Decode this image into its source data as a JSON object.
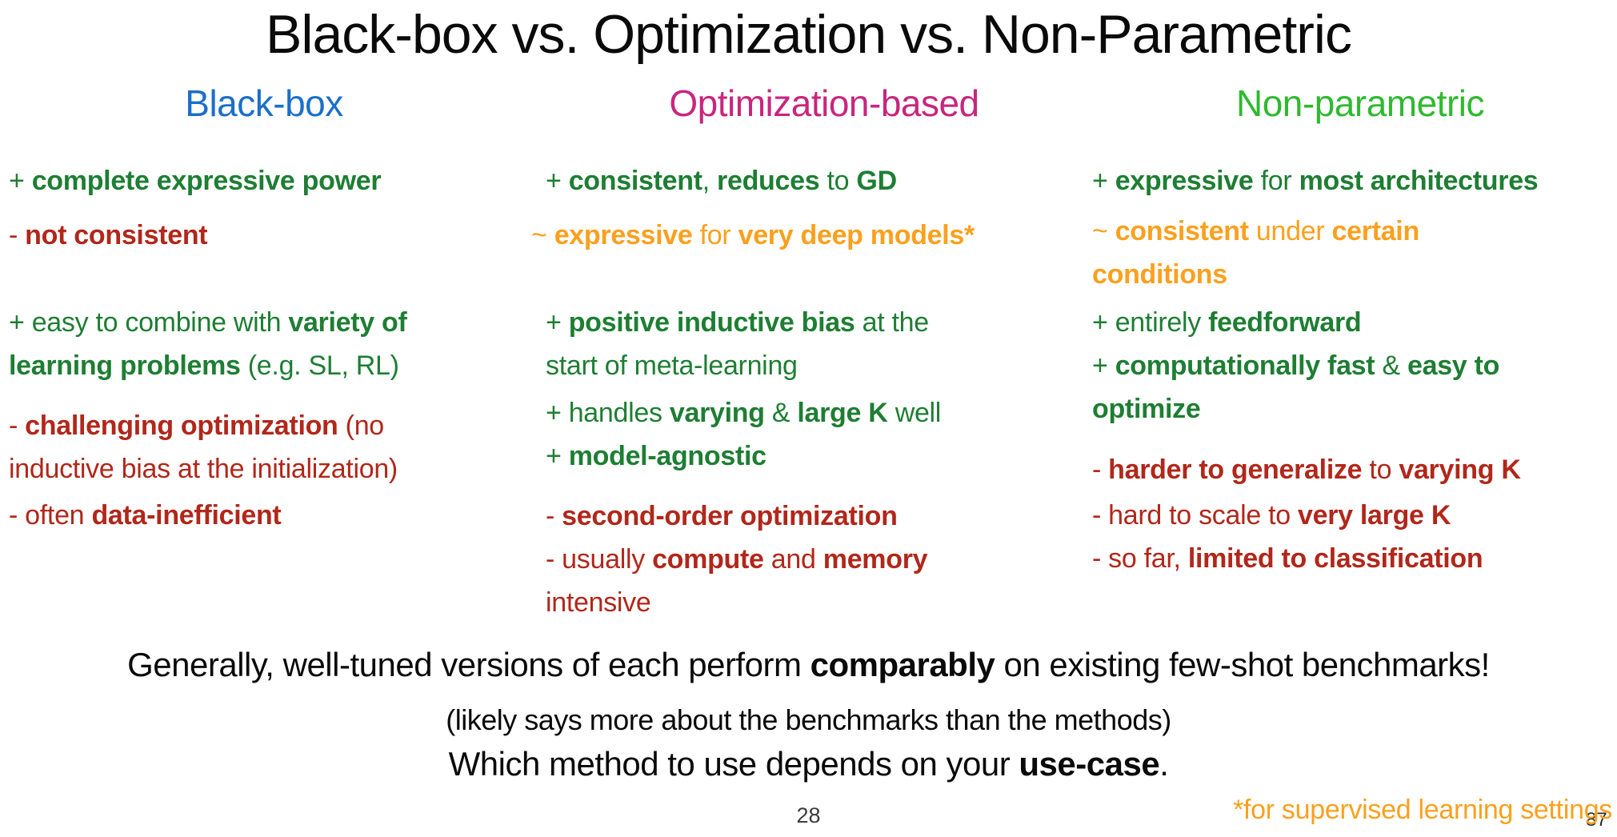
{
  "title": "Black-box vs. Optimization vs. Non-Parametric",
  "colors": {
    "blue": "#1b6fc8",
    "magenta": "#c7267e",
    "bright-green": "#2fb92f",
    "green": "#1e7e33",
    "red": "#b1271a",
    "orange": "#fba01e",
    "ink": "#0a0a0a",
    "page-gray": "#3c3c3c"
  },
  "columns": [
    {
      "header": "Black-box",
      "items": [
        {
          "sentiment": "pro",
          "runs": [
            {
              "t": "+ "
            },
            {
              "t": "complete expressive power",
              "b": true
            }
          ]
        },
        {
          "sentiment": "con",
          "runs": [
            {
              "t": "- "
            },
            {
              "t": "not consistent",
              "b": true
            }
          ]
        },
        {
          "sentiment": "pro",
          "runs": [
            {
              "t": "+ easy to combine with "
            },
            {
              "t": "variety of\nlearning problems",
              "b": true
            },
            {
              "t": " (e.g. SL, RL)"
            }
          ]
        },
        {
          "sentiment": "con",
          "runs": [
            {
              "t": "- "
            },
            {
              "t": "challenging optimization",
              "b": true
            },
            {
              "t": " (no\ninductive bias at the initialization)"
            }
          ]
        },
        {
          "sentiment": "con",
          "runs": [
            {
              "t": "- often "
            },
            {
              "t": "data-inefficient",
              "b": true
            }
          ]
        }
      ]
    },
    {
      "header": "Optimization-based",
      "items": [
        {
          "sentiment": "pro",
          "runs": [
            {
              "t": "+ "
            },
            {
              "t": "consistent",
              "b": true
            },
            {
              "t": ", "
            },
            {
              "t": "reduces",
              "b": true
            },
            {
              "t": " to "
            },
            {
              "t": "GD",
              "b": true
            }
          ]
        },
        {
          "sentiment": "mixed",
          "runs": [
            {
              "t": "~ "
            },
            {
              "t": "expressive",
              "b": true
            },
            {
              "t": " for "
            },
            {
              "t": "very deep models*",
              "b": true
            }
          ]
        },
        {
          "sentiment": "pro",
          "runs": [
            {
              "t": "+ "
            },
            {
              "t": "positive inductive bias",
              "b": true
            },
            {
              "t": " at the\nstart of meta-learning"
            }
          ]
        },
        {
          "sentiment": "pro",
          "runs": [
            {
              "t": "+ handles "
            },
            {
              "t": "varying",
              "b": true
            },
            {
              "t": " & "
            },
            {
              "t": "large K",
              "b": true
            },
            {
              "t": " well"
            }
          ]
        },
        {
          "sentiment": "pro",
          "runs": [
            {
              "t": "+ "
            },
            {
              "t": "model-agnostic",
              "b": true
            }
          ]
        },
        {
          "sentiment": "con",
          "runs": [
            {
              "t": "- "
            },
            {
              "t": "second-order optimization",
              "b": true
            }
          ]
        },
        {
          "sentiment": "con",
          "runs": [
            {
              "t": "- usually "
            },
            {
              "t": "compute",
              "b": true
            },
            {
              "t": " and "
            },
            {
              "t": "memory",
              "b": true
            },
            {
              "t": "\nintensive"
            }
          ]
        }
      ]
    },
    {
      "header": "Non-parametric",
      "items": [
        {
          "sentiment": "pro",
          "runs": [
            {
              "t": "+ "
            },
            {
              "t": "expressive",
              "b": true
            },
            {
              "t": " for "
            },
            {
              "t": "most architectures",
              "b": true
            }
          ]
        },
        {
          "sentiment": "mixed",
          "runs": [
            {
              "t": "~ "
            },
            {
              "t": "consistent",
              "b": true
            },
            {
              "t": " under "
            },
            {
              "t": "certain",
              "b": true
            },
            {
              "t": "\n"
            },
            {
              "t": "conditions",
              "b": true
            }
          ]
        },
        {
          "sentiment": "pro",
          "runs": [
            {
              "t": "+ entirely "
            },
            {
              "t": "feedforward",
              "b": true
            }
          ]
        },
        {
          "sentiment": "pro",
          "runs": [
            {
              "t": "+ "
            },
            {
              "t": "computationally fast",
              "b": true
            },
            {
              "t": " & "
            },
            {
              "t": "easy to\noptimize",
              "b": true
            }
          ]
        },
        {
          "sentiment": "con",
          "runs": [
            {
              "t": "- "
            },
            {
              "t": "harder to generalize",
              "b": true
            },
            {
              "t": " to "
            },
            {
              "t": "varying K",
              "b": true
            }
          ]
        },
        {
          "sentiment": "con",
          "runs": [
            {
              "t": "- hard to scale to "
            },
            {
              "t": "very large K",
              "b": true
            }
          ]
        },
        {
          "sentiment": "con",
          "runs": [
            {
              "t": "- so far, "
            },
            {
              "t": "limited to classification",
              "b": true
            }
          ]
        }
      ]
    }
  ],
  "footer": {
    "summary_runs": [
      {
        "t": "Generally, well-tuned versions of each perform "
      },
      {
        "t": "comparably",
        "b": true
      },
      {
        "t": " on existing few-shot benchmarks!"
      }
    ],
    "note": "(likely says more about the benchmarks than the methods)",
    "conclusion_runs": [
      {
        "t": "Which method to use depends on your "
      },
      {
        "t": "use-case",
        "b": true
      },
      {
        "t": "."
      }
    ],
    "page_number": "28",
    "overlay_number": "87",
    "footnote": "*for supervised learning settings"
  }
}
